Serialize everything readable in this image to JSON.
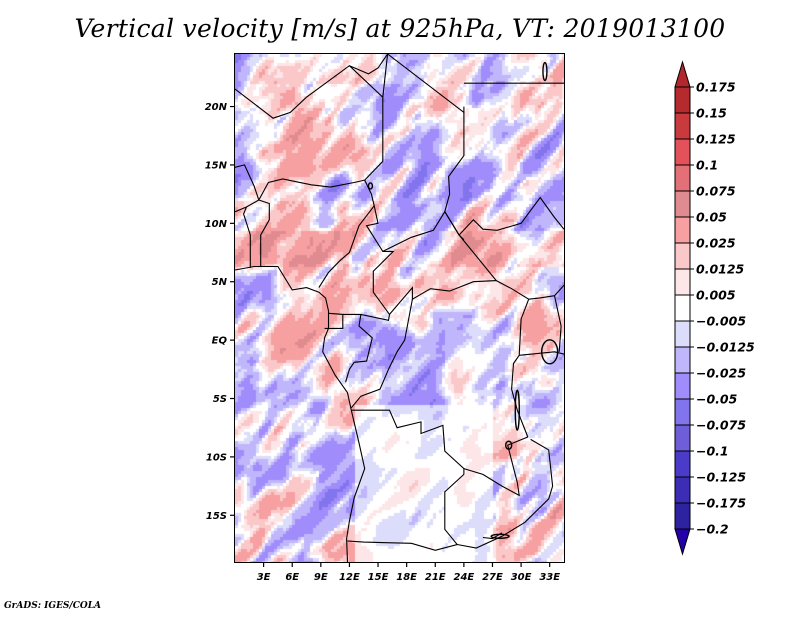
{
  "chart_data": {
    "type": "heatmap",
    "title": "Vertical velocity [m/s] at 925hPa, VT: 2019013100",
    "variable": "Vertical velocity",
    "units": "m/s",
    "level": "925hPa",
    "valid_time": "2019013100",
    "xlabel": "",
    "ylabel": "",
    "x_range_deg": [
      0,
      34.5
    ],
    "y_range_deg": [
      -19,
      24.5
    ],
    "x_ticks": [
      {
        "value": 3,
        "label": "3E"
      },
      {
        "value": 6,
        "label": "6E"
      },
      {
        "value": 9,
        "label": "9E"
      },
      {
        "value": 12,
        "label": "12E"
      },
      {
        "value": 15,
        "label": "15E"
      },
      {
        "value": 18,
        "label": "18E"
      },
      {
        "value": 21,
        "label": "21E"
      },
      {
        "value": 24,
        "label": "24E"
      },
      {
        "value": 27,
        "label": "27E"
      },
      {
        "value": 30,
        "label": "30E"
      },
      {
        "value": 33,
        "label": "33E"
      }
    ],
    "y_ticks": [
      {
        "value": 20,
        "label": "20N"
      },
      {
        "value": 15,
        "label": "15N"
      },
      {
        "value": 10,
        "label": "10N"
      },
      {
        "value": 5,
        "label": "5N"
      },
      {
        "value": 0,
        "label": "EQ"
      },
      {
        "value": -5,
        "label": "5S"
      },
      {
        "value": -10,
        "label": "10S"
      },
      {
        "value": -15,
        "label": "15S"
      }
    ],
    "grid": false,
    "legend": "right",
    "colorbar": {
      "levels": [
        0.175,
        0.15,
        0.125,
        0.1,
        0.075,
        0.05,
        0.025,
        0.0125,
        0.005,
        -0.005,
        -0.0125,
        -0.025,
        -0.05,
        -0.075,
        -0.1,
        -0.125,
        -0.175,
        -0.2
      ],
      "labels": [
        "0.175",
        "0.15",
        "0.125",
        "0.1",
        "0.075",
        "0.05",
        "0.025",
        "0.0125",
        "0.005",
        "−0.005",
        "−0.0125",
        "−0.025",
        "−0.05",
        "−0.075",
        "−0.1",
        "−0.125",
        "−0.175",
        "−0.2"
      ],
      "colors_top_to_bottom": [
        "#b1272b",
        "#b52a2d",
        "#c83a3e",
        "#e3525a",
        "#e37077",
        "#e08b90",
        "#f6a0a2",
        "#fbc8c9",
        "#fde6e7",
        "#ffffff",
        "#dcdcfb",
        "#c0b6fb",
        "#a08cfa",
        "#8274ec",
        "#6e5ed8",
        "#4a3cc8",
        "#3c2db4",
        "#2d22a0",
        "#2400a8"
      ],
      "extend": "both"
    },
    "field_description": "Mixed positive (red) and negative (blue) vertical velocity values, mostly within ±0.05 m/s, over Central/West Africa; near-zero (white) over Angola, Zambia and southern DRC"
  },
  "footer": "GrADS: IGES/COLA"
}
